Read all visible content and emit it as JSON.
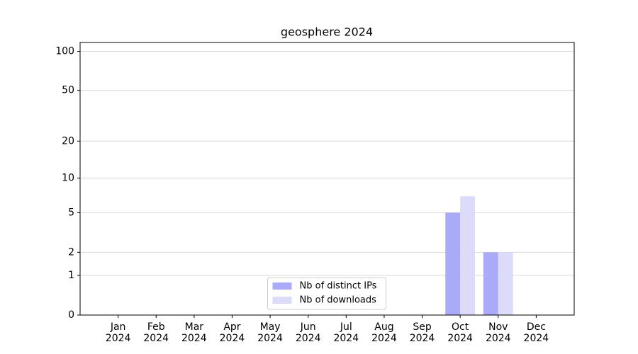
{
  "chart_data": {
    "type": "bar",
    "title": "geosphere 2024",
    "categories": [
      "Jan\n2024",
      "Feb\n2024",
      "Mar\n2024",
      "Apr\n2024",
      "May\n2024",
      "Jun\n2024",
      "Jul\n2024",
      "Aug\n2024",
      "Sep\n2024",
      "Oct\n2024",
      "Nov\n2024",
      "Dec\n2024"
    ],
    "series": [
      {
        "name": "Nb of distinct IPs",
        "color": "#aaaaf8",
        "values": [
          0,
          0,
          0,
          0,
          0,
          0,
          0,
          0,
          0,
          5,
          2,
          0
        ]
      },
      {
        "name": "Nb of downloads",
        "color": "#dcdcfa",
        "values": [
          0,
          0,
          0,
          0,
          0,
          0,
          0,
          0,
          0,
          7,
          2,
          0
        ]
      }
    ],
    "yscale": "symlog",
    "ylim": [
      0,
      117
    ],
    "yticks": [
      0,
      1,
      2,
      5,
      10,
      20,
      50,
      100
    ],
    "grid": true,
    "legend": "lower center"
  }
}
